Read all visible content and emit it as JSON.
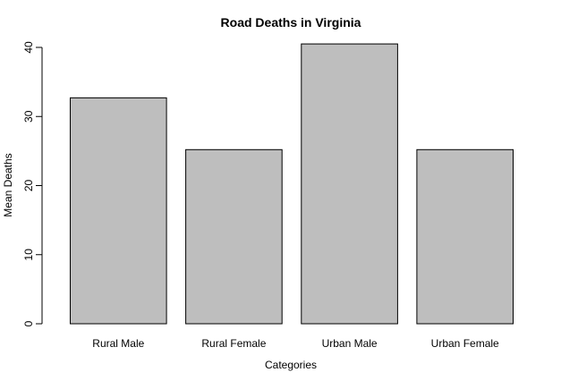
{
  "chart_data": {
    "type": "bar",
    "title": "Road Deaths in Virginia",
    "xlabel": "Categories",
    "ylabel": "Mean Deaths",
    "categories": [
      "Rural Male",
      "Rural Female",
      "Urban Male",
      "Urban Female"
    ],
    "values": [
      32.7,
      25.2,
      40.5,
      25.2
    ],
    "ylim": [
      0,
      40
    ],
    "yticks": [
      0,
      10,
      20,
      30,
      40
    ],
    "grid": false,
    "bar_color": "#bebebe",
    "bar_border_color": "#000000"
  }
}
